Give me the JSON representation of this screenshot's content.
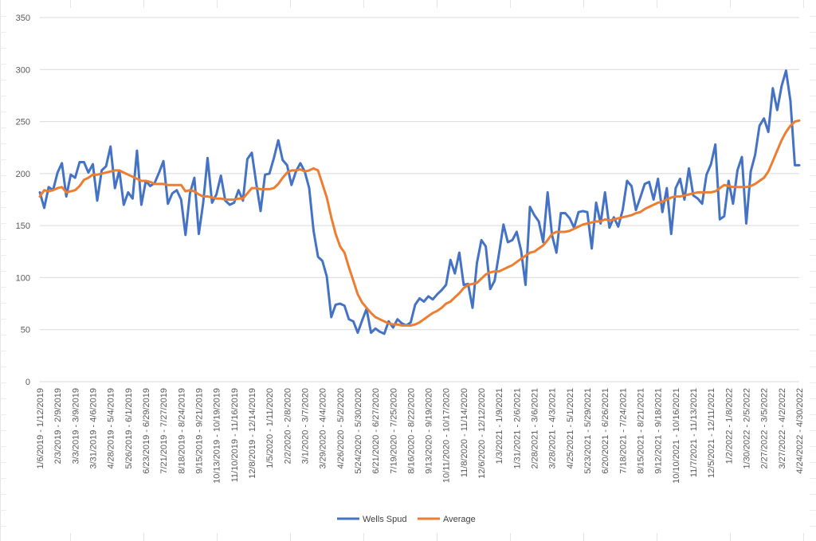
{
  "chart_data": {
    "type": "line",
    "title": "",
    "xlabel": "",
    "ylabel": "",
    "ylim": [
      0,
      350
    ],
    "yticks": [
      0,
      50,
      100,
      150,
      200,
      250,
      300,
      350
    ],
    "grid": "horizontal",
    "legend_position": "bottom",
    "x_tick_labels": [
      "1/6/2019 - 1/12/2019",
      "2/3/2019 - 2/9/2019",
      "3/3/2019 - 3/9/2019",
      "3/31/2019 - 4/6/2019",
      "4/28/2019 - 5/4/2019",
      "5/26/2019 - 6/1/2019",
      "6/23/2019 - 6/29/2019",
      "7/21/2019 - 7/27/2019",
      "8/18/2019 - 8/24/2019",
      "9/15/2019 - 9/21/2019",
      "10/13/2019 - 10/19/2019",
      "11/10/2019 - 11/16/2019",
      "12/8/2019 - 12/14/2019",
      "1/5/2020 - 1/11/2020",
      "2/2/2020 - 2/8/2020",
      "3/1/2020 - 3/7/2020",
      "3/29/2020 - 4/4/2020",
      "4/26/2020 - 5/2/2020",
      "5/24/2020 - 5/30/2020",
      "6/21/2020 - 6/27/2020",
      "7/19/2020 - 7/25/2020",
      "8/16/2020 - 8/22/2020",
      "9/13/2020 - 9/19/2020",
      "10/11/2020 - 10/17/2020",
      "11/8/2020 - 11/14/2020",
      "12/6/2020 - 12/12/2020",
      "1/3/2021 - 1/9/2021",
      "1/31/2021 - 2/6/2021",
      "2/28/2021 - 3/6/2021",
      "3/28/2021 - 4/3/2021",
      "4/25/2021 - 5/1/2021",
      "5/23/2021 - 5/29/2021",
      "6/20/2021 - 6/26/2021",
      "7/18/2021 - 7/24/2021",
      "8/15/2021 - 8/21/2021",
      "9/12/2021 - 9/18/2021",
      "10/10/2021 - 10/16/2021",
      "11/7/2021 - 11/13/2021",
      "12/5/2021 - 12/11/2021",
      "1/2/2022 - 1/8/2022",
      "1/30/2022 - 2/5/2022",
      "2/27/2022 - 3/5/2022",
      "3/27/2022 - 4/2/2022",
      "4/24/2022 - 4/30/2022"
    ],
    "series": [
      {
        "name": "Wells Spud",
        "color": "#4472C4",
        "values": [
          182,
          167,
          187,
          184,
          201,
          210,
          178,
          199,
          196,
          211,
          211,
          201,
          209,
          174,
          203,
          207,
          226,
          186,
          203,
          170,
          182,
          176,
          222,
          170,
          193,
          188,
          191,
          201,
          212,
          171,
          181,
          184,
          175,
          141,
          181,
          196,
          142,
          172,
          215,
          172,
          180,
          198,
          174,
          170,
          172,
          184,
          174,
          214,
          220,
          191,
          164,
          199,
          200,
          215,
          232,
          213,
          208,
          189,
          202,
          210,
          202,
          186,
          145,
          120,
          116,
          101,
          62,
          74,
          75,
          73,
          60,
          58,
          47,
          59,
          70,
          47,
          51,
          48,
          46,
          58,
          52,
          60,
          56,
          54,
          57,
          74,
          80,
          77,
          82,
          79,
          84,
          88,
          93,
          117,
          104,
          124,
          93,
          94,
          71,
          114,
          136,
          130,
          89,
          97,
          123,
          151,
          134,
          136,
          144,
          126,
          93,
          168,
          160,
          154,
          134,
          182,
          141,
          124,
          162,
          162,
          157,
          148,
          163,
          164,
          163,
          128,
          172,
          152,
          182,
          148,
          158,
          149,
          165,
          193,
          188,
          165,
          177,
          190,
          192,
          175,
          195,
          163,
          186,
          142,
          186,
          195,
          175,
          205,
          179,
          176,
          171,
          199,
          209,
          228,
          156,
          159,
          193,
          171,
          203,
          216,
          152,
          202,
          218,
          246,
          253,
          240,
          282,
          261,
          284,
          299,
          270,
          208,
          208
        ],
        "average": [
          178,
          184,
          183,
          184,
          186,
          187,
          182,
          183,
          184,
          188,
          194,
          196,
          199,
          199,
          200,
          201,
          202,
          203,
          203,
          201,
          199,
          197,
          195,
          193,
          193,
          192,
          190,
          190,
          190,
          189,
          189,
          189,
          189,
          183,
          184,
          183,
          180,
          178,
          178,
          177,
          176,
          176,
          175,
          175,
          175,
          176,
          176,
          181,
          186,
          186,
          185,
          185,
          185,
          186,
          190,
          196,
          201,
          203,
          203,
          204,
          202,
          203,
          205,
          203,
          190,
          177,
          158,
          142,
          130,
          124,
          110,
          97,
          84,
          76,
          71,
          66,
          62,
          60,
          58,
          56,
          55,
          55,
          54,
          54,
          54,
          55,
          57,
          60,
          63,
          66,
          68,
          71,
          75,
          77,
          81,
          85,
          90,
          93,
          94,
          95,
          99,
          103,
          105,
          106,
          106,
          108,
          110,
          112,
          115,
          118,
          121,
          124,
          125,
          128,
          131,
          136,
          142,
          144,
          144,
          144,
          145,
          147,
          149,
          151,
          152,
          153,
          154,
          154,
          156,
          155,
          156,
          157,
          158,
          159,
          160,
          162,
          163,
          166,
          168,
          170,
          172,
          173,
          175,
          177,
          178,
          178,
          179,
          180,
          181,
          182,
          182,
          182,
          182,
          183,
          186,
          189,
          188,
          187,
          187,
          187,
          187,
          188,
          190,
          193,
          196,
          202,
          212,
          222,
          232,
          240,
          246,
          250,
          251
        ]
      }
    ],
    "legend": [
      {
        "label": "Wells Spud",
        "color": "#4472C4"
      },
      {
        "label": "Average",
        "color": "#ED7D31"
      }
    ]
  }
}
